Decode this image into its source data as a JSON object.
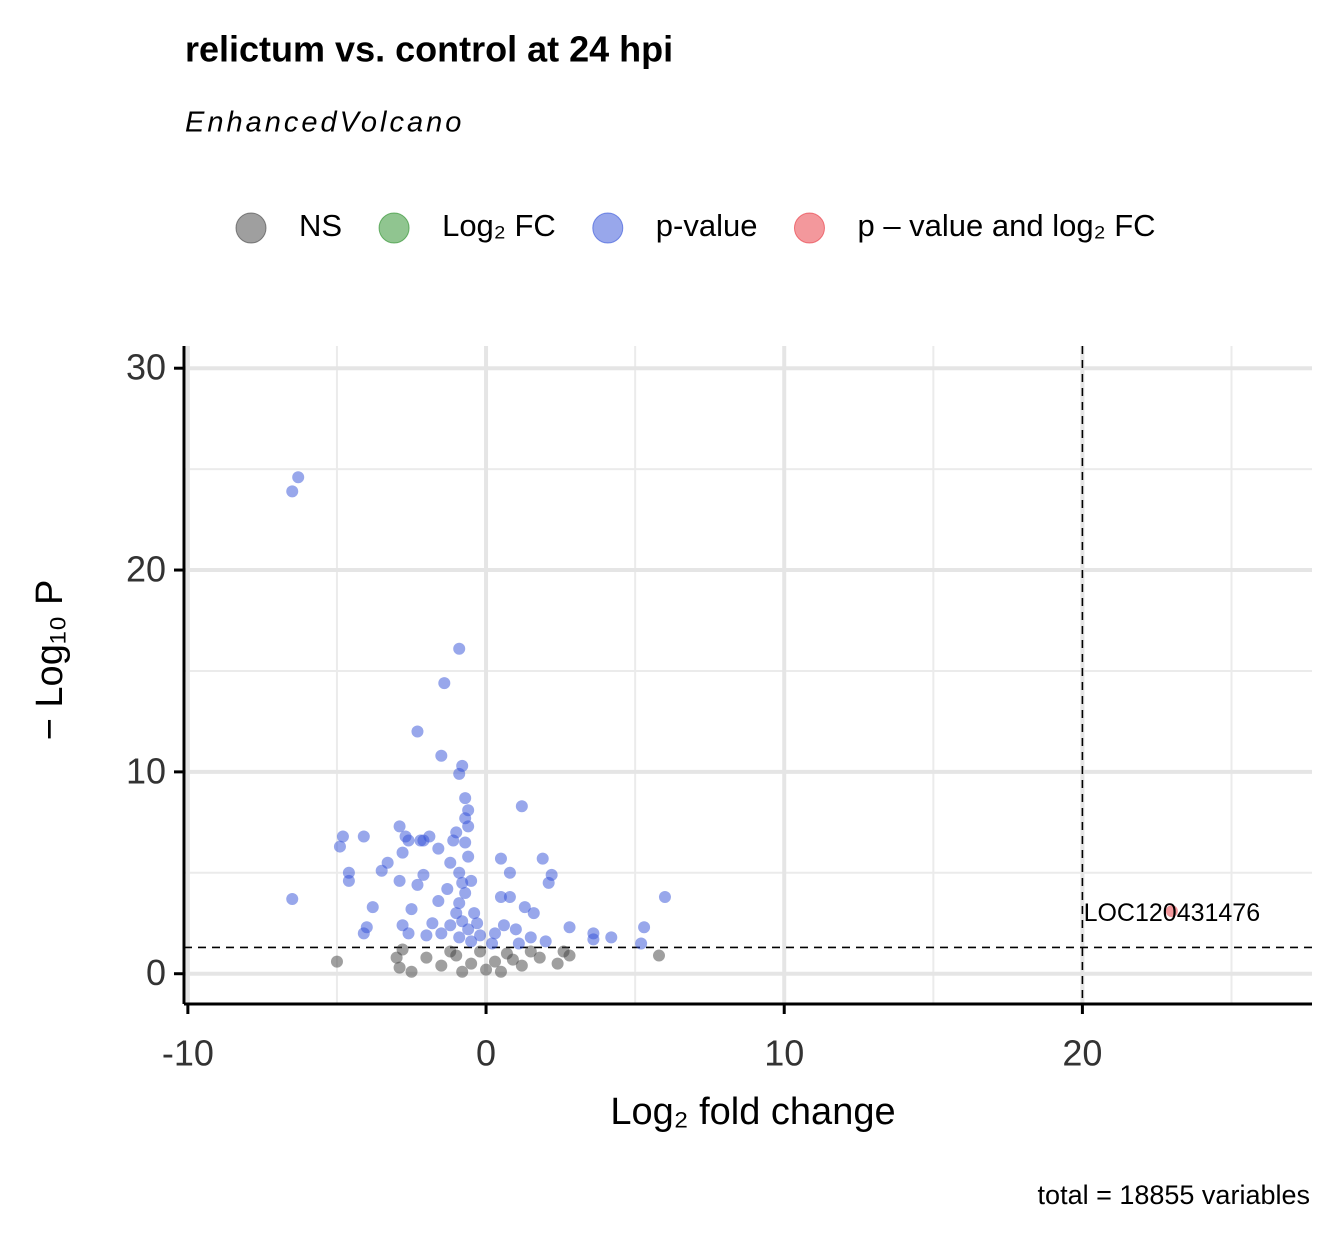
{
  "chart_data": {
    "type": "scatter",
    "title": "relictum vs. control at 24 hpi",
    "subtitle": "EnhancedVolcano",
    "caption": "total = 18855 variables",
    "x_label": "Log₂ fold change",
    "y_label": "− Log₁₀ P",
    "xlim": [
      -10.13,
      27.7
    ],
    "ylim": [
      -1.5,
      31.1
    ],
    "xticks": [
      -10,
      0,
      10,
      20
    ],
    "yticks": [
      0,
      10,
      20,
      30
    ],
    "grid": true,
    "legend": "top",
    "vline": 20,
    "hline": 1.3,
    "series": [
      {
        "name": "NS",
        "color": "#404040",
        "x": [
          -5.0,
          5.8,
          2.8,
          -2.9,
          -2.8,
          -2.0,
          -1.5,
          -1.0,
          -0.5,
          0,
          0.3,
          0.7,
          1.2,
          1.8,
          2.4,
          -2.5,
          -0.2,
          0.5,
          1.5,
          2.6,
          -1.2,
          -0.8,
          0.9,
          -3.0
        ],
        "values": [
          0.6,
          0.9,
          0.9,
          0.3,
          1.2,
          0.8,
          0.4,
          0.9,
          0.5,
          0.2,
          0.6,
          1.0,
          0.4,
          0.8,
          0.5,
          0.1,
          1.1,
          0.1,
          1.1,
          1.1,
          1.1,
          0.1,
          0.7,
          0.8
        ]
      },
      {
        "name": "Log₂ FC",
        "color": "#228b22",
        "x": [],
        "values": []
      },
      {
        "name": "p-value",
        "color": "#3150d8",
        "x": [
          -6.5,
          -6.3,
          -0.9,
          -1.4,
          -2.3,
          -1.5,
          -0.9,
          -0.8,
          -0.7,
          -0.6,
          1.2,
          -0.7,
          -0.6,
          -1.0,
          -1.1,
          -1.9,
          -2.2,
          -2.9,
          -2.7,
          -2.6,
          -4.1,
          -4.8,
          -4.9,
          -1.6,
          -2.1,
          -2.8,
          -3.3,
          -3.5,
          -4.6,
          -4.6,
          -2.9,
          -2.1,
          -2.3,
          -1.2,
          -0.9,
          0.5,
          0.8,
          1.9,
          2.2,
          2.1,
          6.0,
          5.3,
          5.2,
          -6.5,
          -3.8,
          -2.5,
          -2.8,
          -4.0,
          -4.1,
          -2.6,
          0.5,
          0.8,
          1.3,
          1.6,
          2.8,
          3.6,
          3.6,
          4.2,
          -0.8,
          -0.7,
          -0.9,
          -1.0,
          -0.8,
          -1.2,
          -0.6,
          -1.5,
          -0.9,
          -0.5,
          0.3,
          0.6,
          1.0,
          1.5,
          2.0,
          -1.8,
          -2.0,
          -0.4,
          -0.3,
          -0.2,
          0.2,
          1.1,
          -0.6,
          -0.7,
          -1.3,
          -1.6,
          -0.5
        ],
        "values": [
          23.9,
          24.6,
          16.1,
          14.4,
          12.0,
          10.8,
          9.9,
          10.3,
          8.7,
          8.1,
          8.3,
          7.7,
          7.3,
          7.0,
          6.6,
          6.8,
          6.6,
          7.3,
          6.8,
          6.6,
          6.8,
          6.8,
          6.3,
          6.2,
          6.6,
          6.0,
          5.5,
          5.1,
          4.6,
          5.0,
          4.6,
          4.9,
          4.4,
          5.5,
          5.0,
          5.7,
          5.0,
          5.7,
          4.9,
          4.5,
          3.8,
          2.3,
          1.5,
          3.7,
          3.3,
          3.2,
          2.4,
          2.3,
          2.0,
          2.0,
          3.8,
          3.8,
          3.3,
          3.0,
          2.3,
          2.0,
          1.7,
          1.8,
          4.5,
          4.0,
          3.5,
          3.0,
          2.6,
          2.4,
          2.2,
          2.0,
          1.8,
          1.6,
          2.0,
          2.4,
          2.2,
          1.8,
          1.6,
          2.5,
          1.9,
          3.0,
          2.5,
          1.9,
          1.5,
          1.5,
          5.8,
          6.5,
          4.2,
          3.6,
          4.6
        ]
      },
      {
        "name": "p – value and log₂ FC",
        "color": "#e8313a",
        "x": [
          23.0
        ],
        "values": [
          3.1
        ],
        "labels": [
          "LOC120431476"
        ]
      }
    ]
  }
}
